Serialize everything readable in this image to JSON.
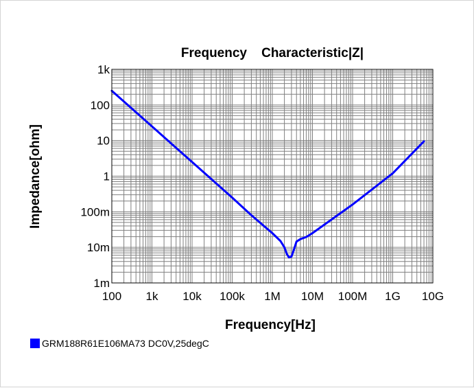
{
  "chart_data": {
    "type": "line",
    "title": "Frequency    Characteristic|Z|",
    "xlabel": "Frequency[Hz]",
    "ylabel": "Impedance[ohm]",
    "x_scale": "log",
    "y_scale": "log",
    "xlim": [
      100,
      10000000000
    ],
    "ylim": [
      0.001,
      1000
    ],
    "grid": true,
    "x_ticks": [
      {
        "value": 100,
        "label": "100"
      },
      {
        "value": 1000,
        "label": "1k"
      },
      {
        "value": 10000,
        "label": "10k"
      },
      {
        "value": 100000,
        "label": "100k"
      },
      {
        "value": 1000000,
        "label": "1M"
      },
      {
        "value": 10000000,
        "label": "10M"
      },
      {
        "value": 100000000,
        "label": "100M"
      },
      {
        "value": 1000000000,
        "label": "1G"
      },
      {
        "value": 10000000000,
        "label": "10G"
      }
    ],
    "y_ticks": [
      {
        "value": 0.001,
        "label": "1m"
      },
      {
        "value": 0.01,
        "label": "10m"
      },
      {
        "value": 0.1,
        "label": "100m"
      },
      {
        "value": 1,
        "label": "1"
      },
      {
        "value": 10,
        "label": "10"
      },
      {
        "value": 100,
        "label": "100"
      },
      {
        "value": 1000,
        "label": "1k"
      }
    ],
    "legend_position": "bottom-left",
    "series": [
      {
        "name": "GRM188R61E106MA73 DC0V,25degC",
        "color": "#0000ff",
        "x": [
          100,
          1000,
          10000,
          100000,
          300000,
          1000000,
          1600000,
          2000000,
          2300000,
          2600000,
          3000000,
          3500000,
          4000000,
          5000000,
          7000000,
          10000000,
          100000000,
          1000000000,
          6000000000
        ],
        "y": [
          250,
          25,
          2.5,
          0.25,
          0.08,
          0.025,
          0.015,
          0.01,
          0.0065,
          0.0052,
          0.0055,
          0.009,
          0.0145,
          0.017,
          0.0195,
          0.025,
          0.16,
          1.2,
          9.5
        ]
      }
    ]
  }
}
